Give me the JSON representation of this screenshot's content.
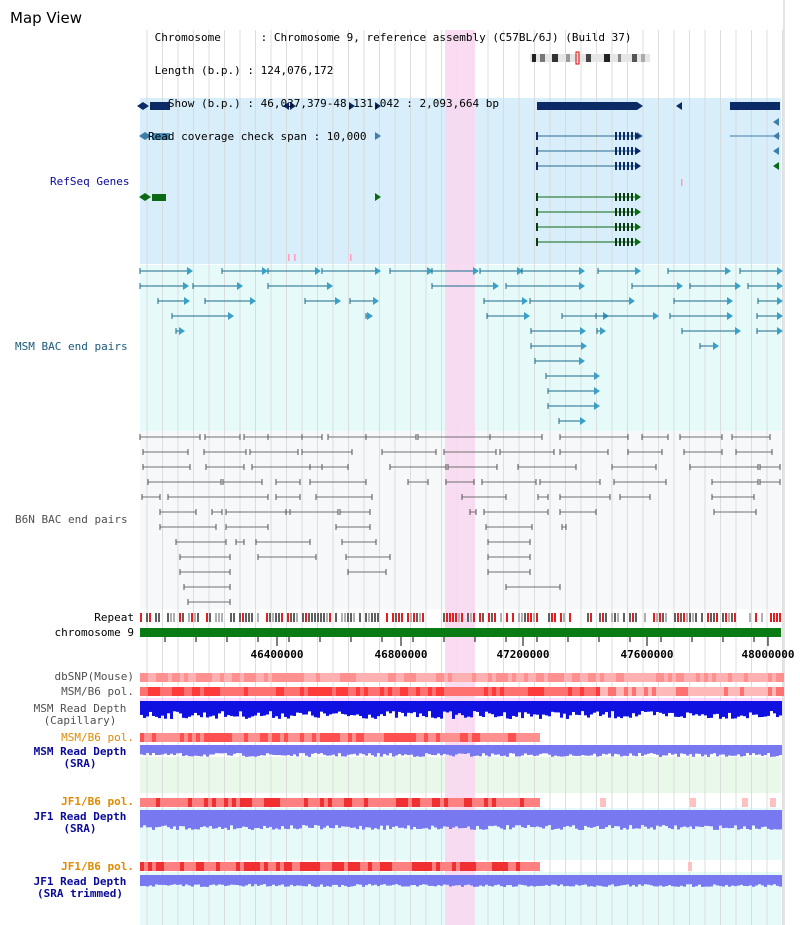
{
  "header": {
    "title": "Map View",
    "line1": " Chromosome      : Chromosome 9, reference assembly (C57BL/6J) (Build 37)",
    "line2": " Length (b.p.) : 124,076,172",
    "line3": "   Show (b.p.) : 46,037,379-48,131,042 : 2,093,664 bp",
    "line4": "Read coverage check span : 10,000"
  },
  "tracks": {
    "refseq": "RefSeq Genes",
    "msm_bac": "MSM BAC end pairs",
    "b6n_bac": "B6N BAC end pairs",
    "repeat": "Repeat",
    "chromosome": "chromosome 9",
    "dbsnp": "dbSNP(Mouse)",
    "msm_pol": "MSM/B6 pol.",
    "msm_depth_cap_1": "MSM Read Depth",
    "msm_depth_cap_2": "(Capillary)",
    "msm_pol_2": "MSM/B6 pol.",
    "msm_depth_sra_1": "MSM Read Depth",
    "msm_depth_sra_2": "(SRA)",
    "jf1_pol": "JF1/B6 pol.",
    "jf1_depth_sra_1": "JF1 Read Depth",
    "jf1_depth_sra_2": "(SRA)",
    "jf1_pol_2": "JF1/B6 pol.",
    "jf1_depth_trim_1": "JF1 Read Depth",
    "jf1_depth_trim_2": "(SRA trimmed)"
  },
  "axis": {
    "ticks": [
      "46400000",
      "46800000",
      "47200000",
      "47600000",
      "48000000"
    ]
  },
  "colors": {
    "refseq_bg": "#d8eefa",
    "msm_bg": "#e6fafa",
    "b6n_bg": "#f6f8fa",
    "highlight": "#f8d8f0",
    "gene_dark": "#0b2a66",
    "gene_mid": "#3c7ea8",
    "gene_green": "#0a6a14",
    "msm_line": "#1a6a8a",
    "b6n_line": "#707070",
    "chrom": "#0a7a14",
    "label_navy": "#0a0a9a",
    "label_orange": "#e08a00",
    "label_teal": "#1a5a7a",
    "label_gray": "#505050",
    "depth_blue": "#1010e0",
    "depth_lav": "#7878f0"
  }
}
